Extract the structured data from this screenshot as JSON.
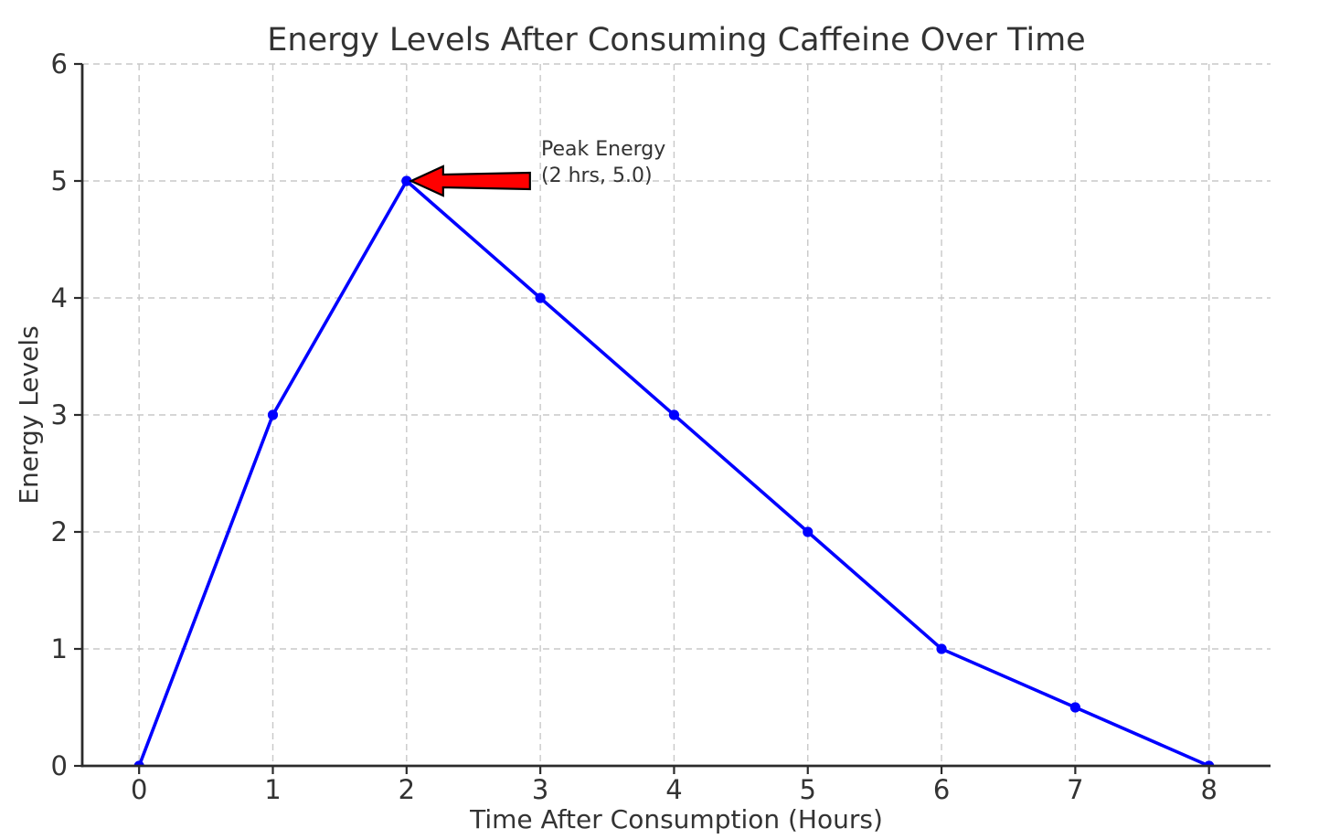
{
  "chart_data": {
    "type": "line",
    "title": "Energy Levels After Consuming Caffeine Over Time",
    "xlabel": "Time After Consumption (Hours)",
    "ylabel": "Energy Levels",
    "x": [
      0,
      1,
      2,
      3,
      4,
      5,
      6,
      7,
      8
    ],
    "y": [
      0,
      3,
      5,
      4,
      3,
      2,
      1,
      0.5,
      0
    ],
    "xticks": [
      0,
      1,
      2,
      3,
      4,
      5,
      6,
      7,
      8
    ],
    "yticks": [
      0,
      1,
      2,
      3,
      4,
      5,
      6
    ],
    "xlim": [
      -0.425,
      8.46
    ],
    "ylim": [
      0,
      6
    ],
    "grid": true,
    "grid_style": "dashed",
    "legend": "none",
    "line_color": "#0000ff",
    "marker": "circle",
    "marker_color": "#0000ff",
    "grid_color": "#c8c8c8",
    "axis_color": "#2b2b2b",
    "text_color": "#333333",
    "background_color": "#ffffff",
    "annotation": {
      "line1": "Peak Energy",
      "line2": "(2 hrs, 5.0)",
      "target_x": 2,
      "target_y": 5,
      "arrow_fill_color": "#ff0000",
      "arrow_edge_color": "#000000"
    }
  }
}
